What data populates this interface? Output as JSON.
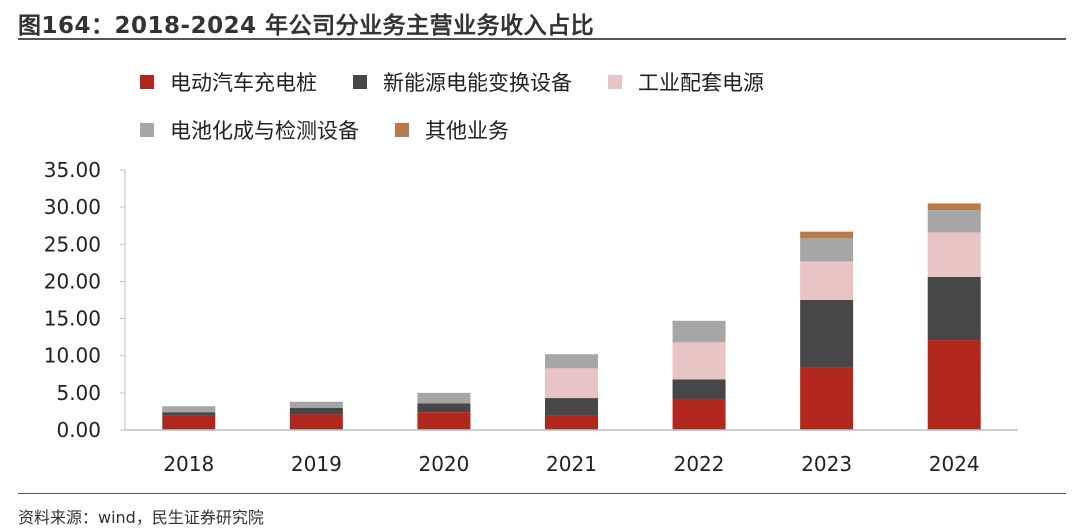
{
  "figure": {
    "title": "图164：2018-2024 年公司分业务主营业务收入占比",
    "source": "资料来源：wind，民生证券研究院"
  },
  "chart_data": {
    "type": "bar",
    "stacked": true,
    "categories": [
      "2018",
      "2019",
      "2020",
      "2021",
      "2022",
      "2023",
      "2024"
    ],
    "series": [
      {
        "name": "电动汽车充电桩",
        "color": "#b1261d",
        "values": [
          1.9,
          2.1,
          2.4,
          1.9,
          4.1,
          8.4,
          12.1
        ]
      },
      {
        "name": "新能源电能变换设备",
        "color": "#474747",
        "values": [
          0.5,
          0.9,
          1.2,
          2.4,
          2.7,
          9.1,
          8.5
        ]
      },
      {
        "name": "工业配套电源",
        "color": "#e8c4c4",
        "values": [
          0.0,
          0.0,
          0.0,
          4.0,
          5.0,
          5.2,
          6.0
        ]
      },
      {
        "name": "电池化成与检测设备",
        "color": "#a6a6a6",
        "values": [
          0.8,
          0.8,
          1.4,
          1.9,
          2.9,
          3.1,
          3.0
        ]
      },
      {
        "name": "其他业务",
        "color": "#b87a4a",
        "values": [
          0.0,
          0.0,
          0.0,
          0.0,
          0.0,
          0.9,
          0.9
        ]
      }
    ],
    "ylim": [
      0,
      35
    ],
    "yticks": [
      "0.00",
      "5.00",
      "10.00",
      "15.00",
      "20.00",
      "25.00",
      "30.00",
      "35.00"
    ],
    "legend_position": "top",
    "grid": false
  }
}
